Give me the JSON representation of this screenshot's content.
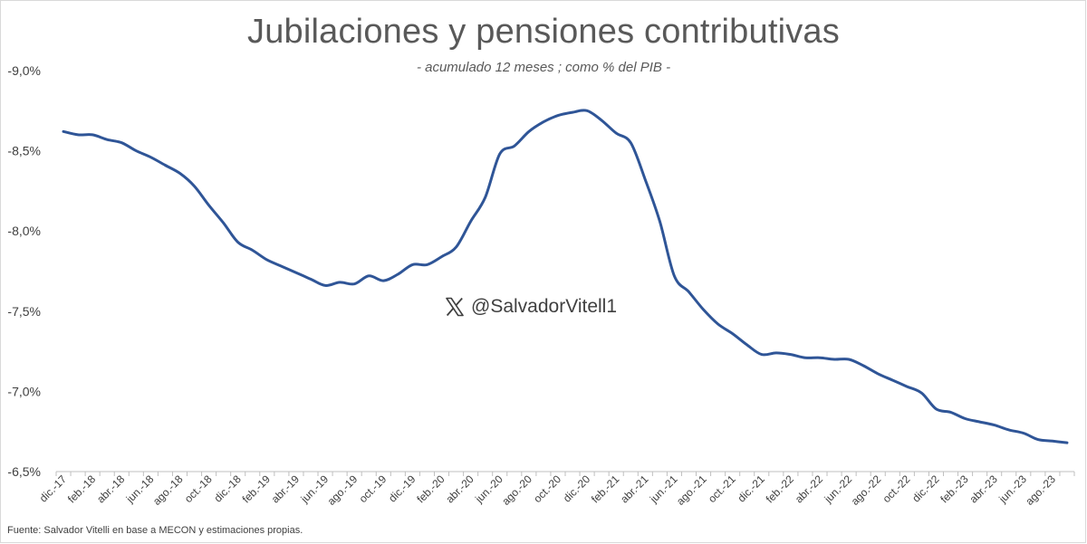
{
  "watermark": {
    "handle": "@SalvadorVitell1",
    "icon": "x-logo-icon"
  },
  "source": "Fuente: Salvador Vitelli en base a MECON y estimaciones propias.",
  "colors": {
    "line": "#2F5597",
    "axis": "#bfbfbf",
    "text": "#404040"
  },
  "chart_data": {
    "type": "line",
    "title": "Jubilaciones y pensiones contributivas",
    "subtitle": "- acumulado 12 meses ; como % del PIB -",
    "xlabel": "",
    "ylabel": "",
    "ylim": [
      -9.0,
      -6.5
    ],
    "y_axis_inverted": true,
    "yticks": [
      -9.0,
      -8.5,
      -8.0,
      -7.5,
      -7.0,
      -6.5
    ],
    "ytick_labels": [
      "-9,0%",
      "-8,5%",
      "-8,0%",
      "-7,5%",
      "-7,0%",
      "-6,5%"
    ],
    "grid": false,
    "legend": "none",
    "xtick_labels": [
      "dic.-17",
      "feb.-18",
      "abr.-18",
      "jun.-18",
      "ago.-18",
      "oct.-18",
      "dic.-18",
      "feb.-19",
      "abr.-19",
      "jun.-19",
      "ago.-19",
      "oct.-19",
      "dic.-19",
      "feb.-20",
      "abr.-20",
      "jun.-20",
      "ago.-20",
      "oct.-20",
      "dic.-20",
      "feb.-21",
      "abr.-21",
      "jun.-21",
      "ago.-21",
      "oct.-21",
      "dic.-21",
      "feb.-22",
      "abr.-22",
      "jun.-22",
      "ago.-22",
      "oct.-22",
      "dic.-22",
      "feb.-23",
      "abr.-23",
      "jun.-23",
      "ago.-23"
    ],
    "x": [
      "dic.-17",
      "ene.-18",
      "feb.-18",
      "mar.-18",
      "abr.-18",
      "may.-18",
      "jun.-18",
      "jul.-18",
      "ago.-18",
      "sep.-18",
      "oct.-18",
      "nov.-18",
      "dic.-18",
      "ene.-19",
      "feb.-19",
      "mar.-19",
      "abr.-19",
      "may.-19",
      "jun.-19",
      "jul.-19",
      "ago.-19",
      "sep.-19",
      "oct.-19",
      "nov.-19",
      "dic.-19",
      "ene.-20",
      "feb.-20",
      "mar.-20",
      "abr.-20",
      "may.-20",
      "jun.-20",
      "jul.-20",
      "ago.-20",
      "sep.-20",
      "oct.-20",
      "nov.-20",
      "dic.-20",
      "ene.-21",
      "feb.-21",
      "mar.-21",
      "abr.-21",
      "may.-21",
      "jun.-21",
      "jul.-21",
      "ago.-21",
      "sep.-21",
      "oct.-21",
      "nov.-21",
      "dic.-21",
      "ene.-22",
      "feb.-22",
      "mar.-22",
      "abr.-22",
      "may.-22",
      "jun.-22",
      "jul.-22",
      "ago.-22",
      "sep.-22",
      "oct.-22",
      "nov.-22",
      "dic.-22",
      "ene.-23",
      "feb.-23",
      "mar.-23",
      "abr.-23",
      "may.-23",
      "jun.-23",
      "jul.-23",
      "ago.-23",
      "sep.-23"
    ],
    "series": [
      {
        "values": [
          -8.62,
          -8.6,
          -8.6,
          -8.57,
          -8.55,
          -8.5,
          -8.46,
          -8.41,
          -8.36,
          -8.28,
          -8.16,
          -8.05,
          -7.93,
          -7.88,
          -7.82,
          -7.78,
          -7.74,
          -7.7,
          -7.66,
          -7.68,
          -7.67,
          -7.72,
          -7.69,
          -7.73,
          -7.79,
          -7.79,
          -7.84,
          -7.9,
          -8.06,
          -8.21,
          -8.48,
          -8.53,
          -8.62,
          -8.68,
          -8.72,
          -8.74,
          -8.75,
          -8.69,
          -8.61,
          -8.55,
          -8.32,
          -8.06,
          -7.72,
          -7.62,
          -7.51,
          -7.42,
          -7.36,
          -7.29,
          -7.23,
          -7.24,
          -7.23,
          -7.21,
          -7.21,
          -7.2,
          -7.2,
          -7.16,
          -7.11,
          -7.07,
          -7.03,
          -6.99,
          -6.89,
          -6.87,
          -6.83,
          -6.81,
          -6.79,
          -6.76,
          -6.74,
          -6.7,
          -6.69,
          -6.68
        ]
      }
    ]
  }
}
